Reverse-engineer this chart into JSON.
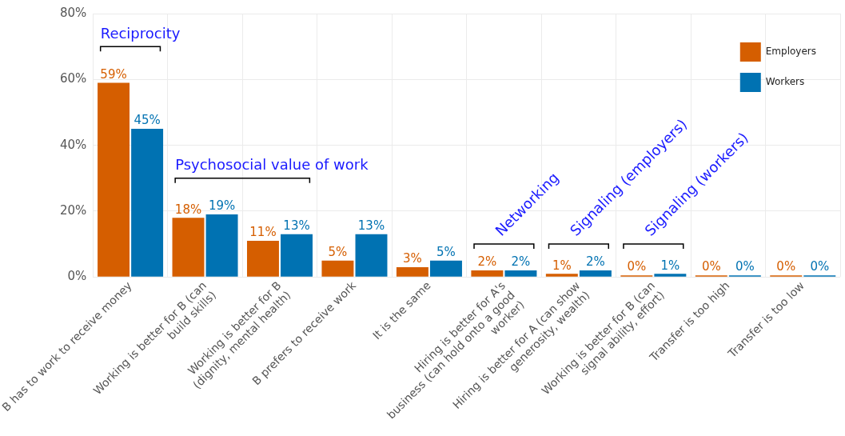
{
  "chart_data": {
    "type": "bar",
    "categories": [
      "B has to work to receive money",
      "Working is better for B (can build skills)",
      "Working is better for B (dignity, mental health)",
      "B prefers to receive work",
      "It is the same",
      "Hiring is better for A's business (can hold onto a good worker)",
      "Hiring is better for A (can show generosity, wealth)",
      "Working is better for B (can signal ability, effort)",
      "Transfer is too high",
      "Transfer is too low"
    ],
    "series": [
      {
        "name": "Employers",
        "color": "#d55e00",
        "values": [
          59,
          18,
          11,
          5,
          3,
          2,
          1,
          0,
          0,
          0
        ],
        "value_labels": [
          "59%",
          "18%",
          "11%",
          "5%",
          "3%",
          "2%",
          "1%",
          "0%",
          "0%",
          "0%"
        ]
      },
      {
        "name": "Workers",
        "color": "#0072b2",
        "values": [
          45,
          19,
          13,
          13,
          5,
          2,
          2,
          1,
          0,
          0
        ],
        "value_labels": [
          "45%",
          "19%",
          "13%",
          "13%",
          "5%",
          "2%",
          "2%",
          "1%",
          "0%",
          "0%"
        ]
      }
    ],
    "ylim": [
      0,
      80
    ],
    "yticks": [
      {
        "value": 0,
        "label": "0%"
      },
      {
        "value": 20,
        "label": "20%"
      },
      {
        "value": 40,
        "label": "40%"
      },
      {
        "value": 60,
        "label": "60%"
      },
      {
        "value": 80,
        "label": "80%"
      }
    ],
    "grid": true,
    "legend": "top right",
    "annotations": [
      "Reciprocity",
      "Psychosocial value of work",
      "Networking",
      "Signaling (employers)",
      "Signaling (workers)"
    ]
  }
}
